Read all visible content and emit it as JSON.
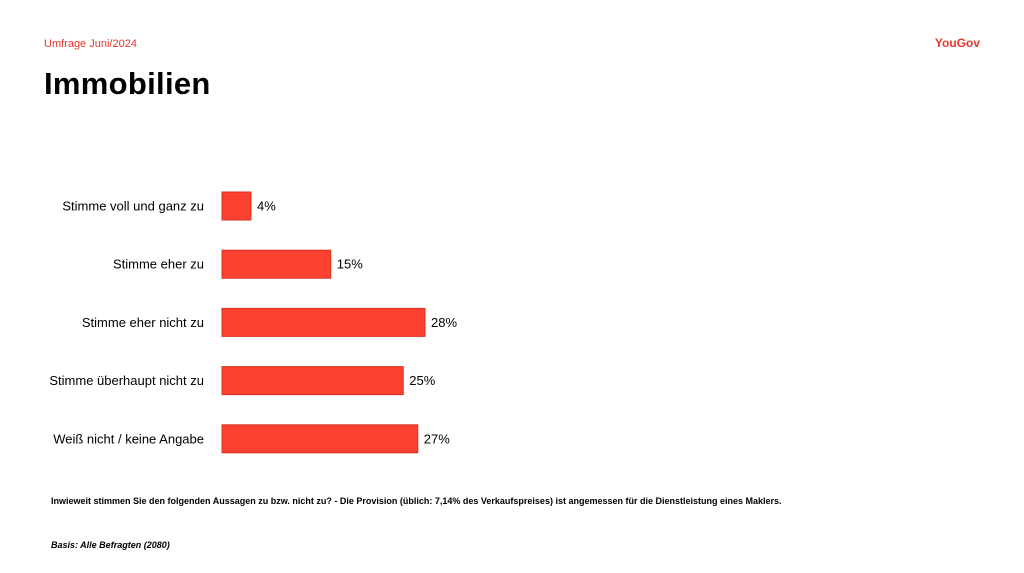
{
  "header": {
    "survey_label": "Umfrage Juni/2024",
    "brand": "YouGov",
    "title": "Immobilien"
  },
  "colors": {
    "accent": "#e8372a",
    "bar": "#fd4131"
  },
  "chart_data": {
    "type": "bar",
    "orientation": "horizontal",
    "categories": [
      "Stimme voll und ganz zu",
      "Stimme eher zu",
      "Stimme eher nicht zu",
      "Stimme überhaupt nicht zu",
      "Weiß nicht / keine Angabe"
    ],
    "values": [
      4,
      15,
      28,
      25,
      27
    ],
    "value_labels": [
      "4%",
      "15%",
      "28%",
      "25%",
      "27%"
    ],
    "unit": "%",
    "grid": false,
    "legend": "none"
  },
  "footer": {
    "question": "Inwieweit stimmen Sie den folgenden Aussagen zu bzw. nicht zu? - Die Provision (üblich: 7,14% des Verkaufspreises) ist angemessen für die Dienstleistung eines Maklers.",
    "basis": "Basis: Alle Befragten (2080)"
  }
}
